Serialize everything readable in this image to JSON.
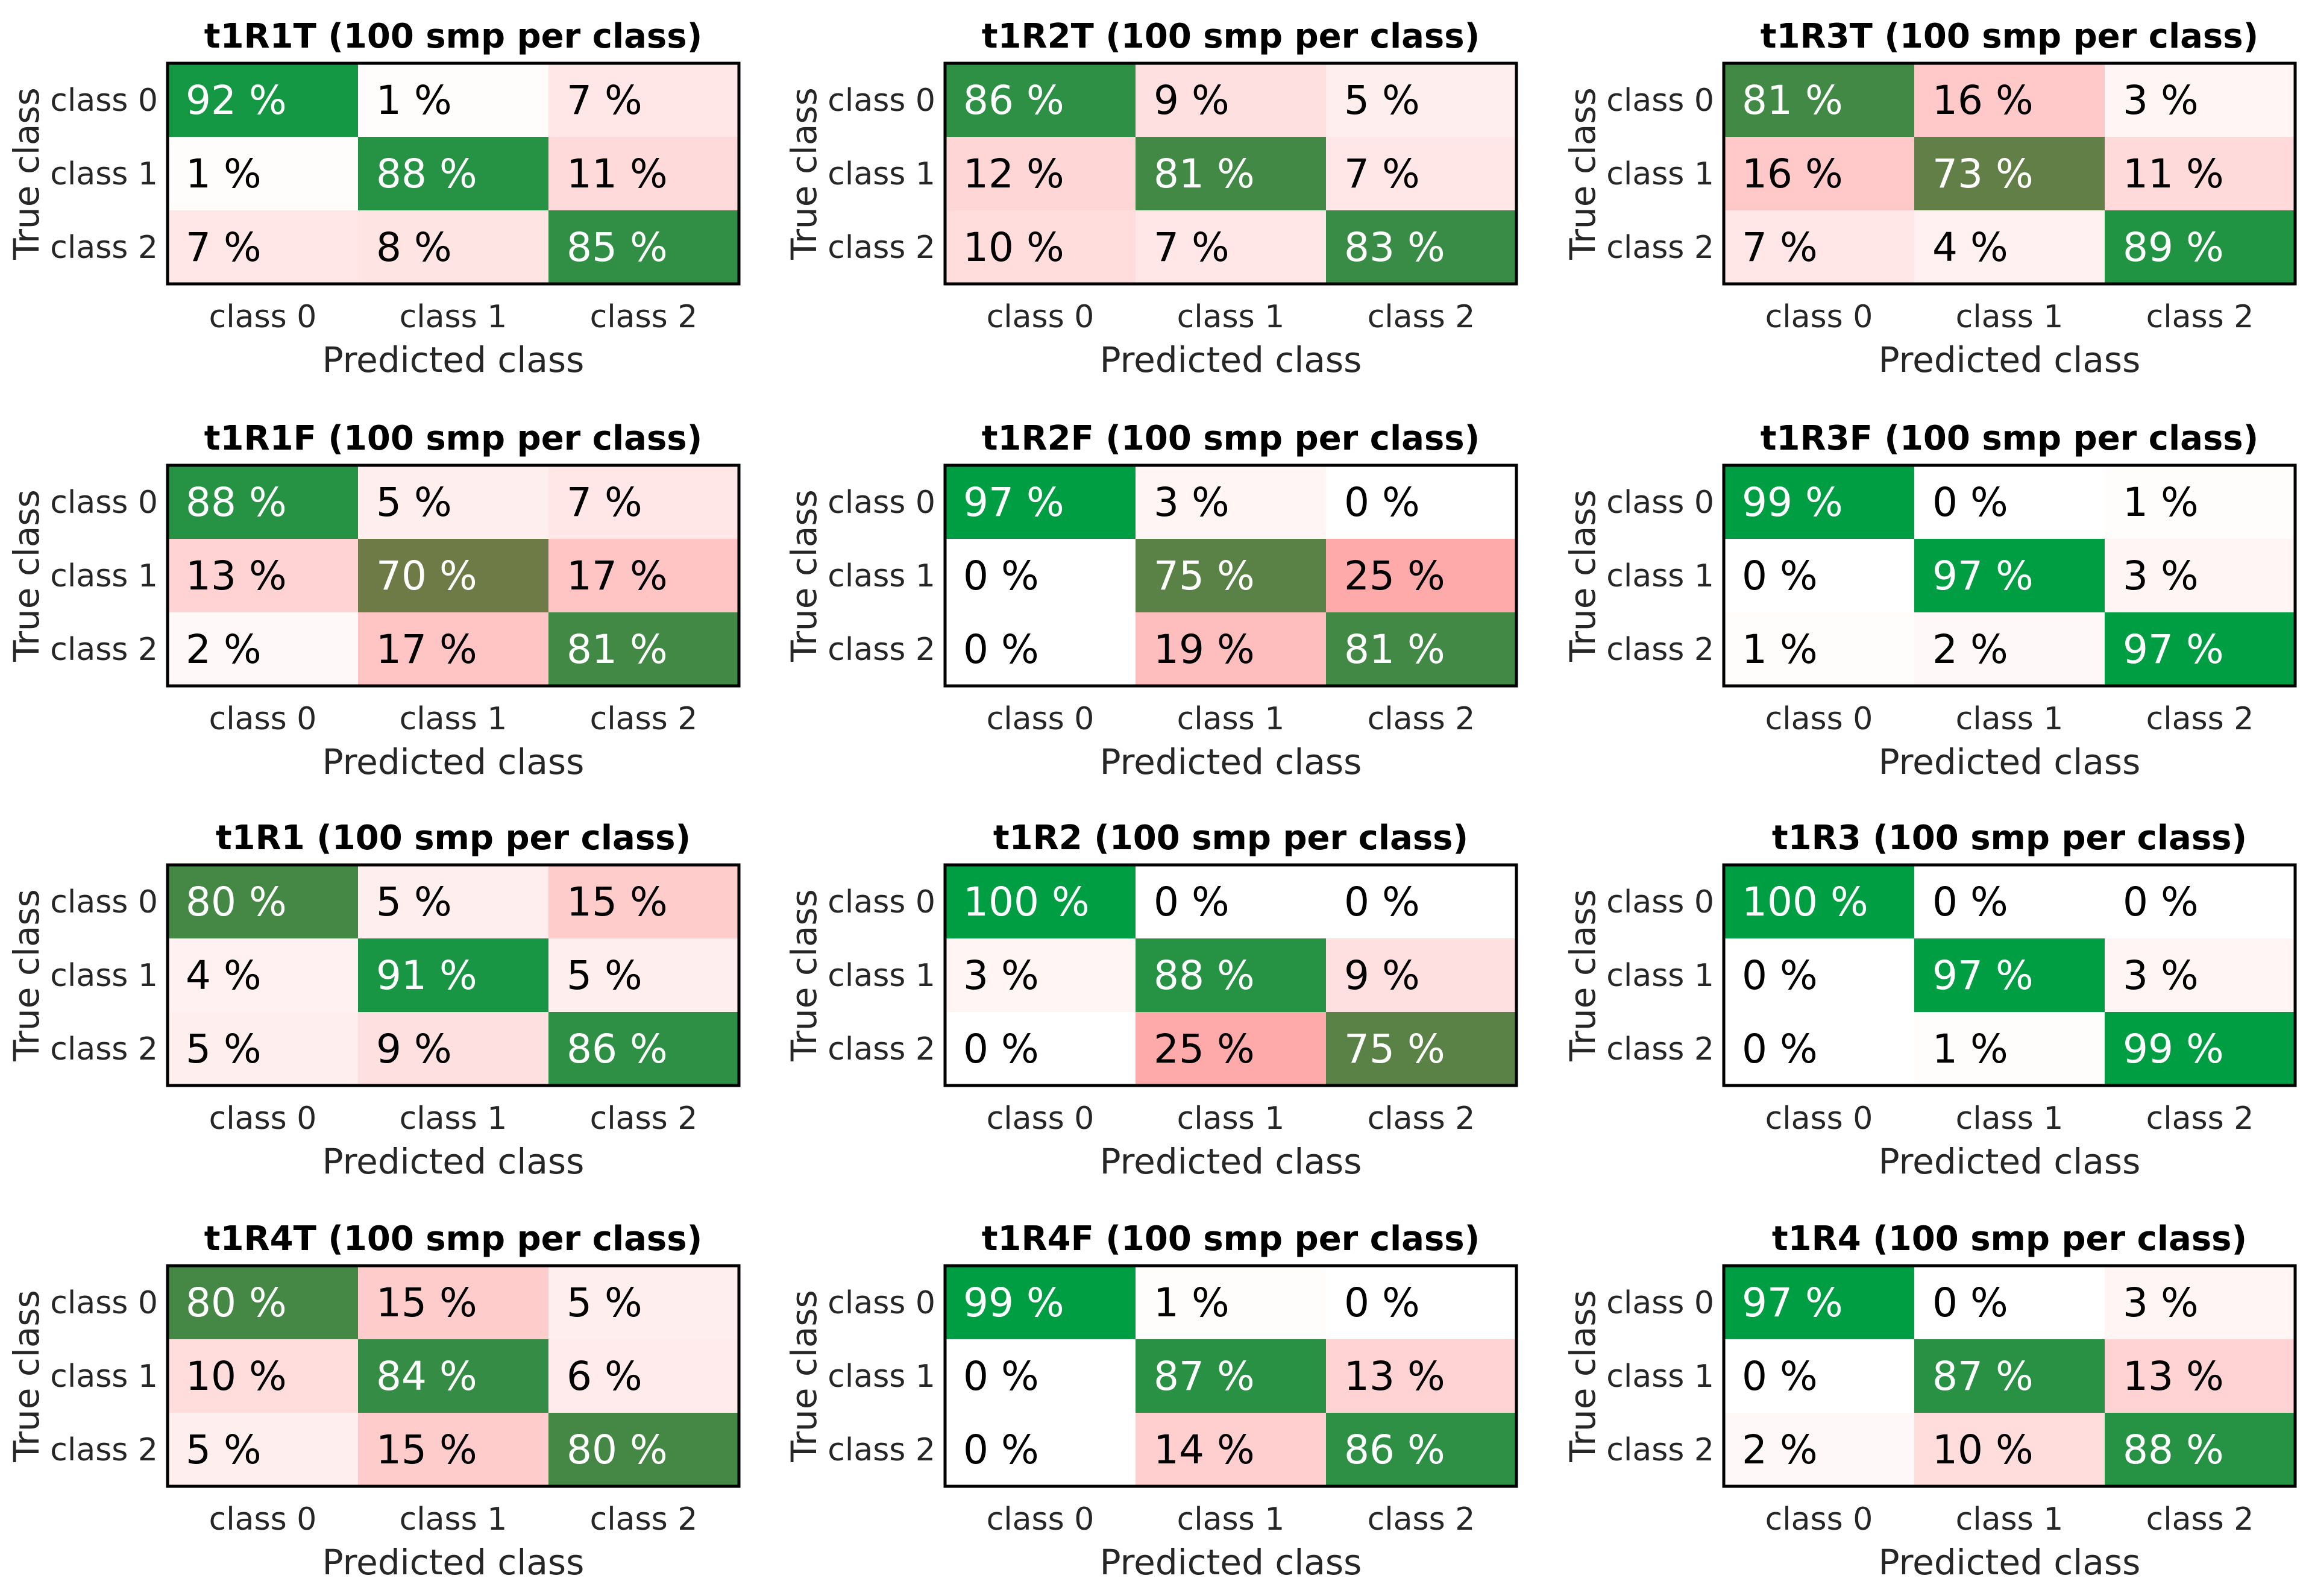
{
  "layout": {
    "columns": 3
  },
  "colors": {
    "diagonal_light": "#009e43",
    "diagonal_dark": "#6e7b47",
    "offdiag_strong": "#ffaaaa",
    "offdiag_faint": "#ffffff",
    "frame": "#000000",
    "text_dark": "#000000",
    "text_light": "#ffffff"
  },
  "chart_data": [
    {
      "type": "heatmap",
      "title": "t1R1T (100 smp per class)",
      "xlabel": "Predicted class",
      "ylabel": "True class",
      "x_categories": [
        "class 0",
        "class 1",
        "class 2"
      ],
      "y_categories": [
        "class 0",
        "class 1",
        "class 2"
      ],
      "value_unit": "%",
      "values": [
        [
          92,
          1,
          7
        ],
        [
          1,
          88,
          11
        ],
        [
          7,
          8,
          85
        ]
      ]
    },
    {
      "type": "heatmap",
      "title": "t1R2T (100 smp per class)",
      "xlabel": "Predicted class",
      "ylabel": "True class",
      "x_categories": [
        "class 0",
        "class 1",
        "class 2"
      ],
      "y_categories": [
        "class 0",
        "class 1",
        "class 2"
      ],
      "value_unit": "%",
      "values": [
        [
          86,
          9,
          5
        ],
        [
          12,
          81,
          7
        ],
        [
          10,
          7,
          83
        ]
      ]
    },
    {
      "type": "heatmap",
      "title": "t1R3T (100 smp per class)",
      "xlabel": "Predicted class",
      "ylabel": "True class",
      "x_categories": [
        "class 0",
        "class 1",
        "class 2"
      ],
      "y_categories": [
        "class 0",
        "class 1",
        "class 2"
      ],
      "value_unit": "%",
      "values": [
        [
          81,
          16,
          3
        ],
        [
          16,
          73,
          11
        ],
        [
          7,
          4,
          89
        ]
      ]
    },
    {
      "type": "heatmap",
      "title": "t1R1F (100 smp per class)",
      "xlabel": "Predicted class",
      "ylabel": "True class",
      "x_categories": [
        "class 0",
        "class 1",
        "class 2"
      ],
      "y_categories": [
        "class 0",
        "class 1",
        "class 2"
      ],
      "value_unit": "%",
      "values": [
        [
          88,
          5,
          7
        ],
        [
          13,
          70,
          17
        ],
        [
          2,
          17,
          81
        ]
      ]
    },
    {
      "type": "heatmap",
      "title": "t1R2F (100 smp per class)",
      "xlabel": "Predicted class",
      "ylabel": "True class",
      "x_categories": [
        "class 0",
        "class 1",
        "class 2"
      ],
      "y_categories": [
        "class 0",
        "class 1",
        "class 2"
      ],
      "value_unit": "%",
      "values": [
        [
          97,
          3,
          0
        ],
        [
          0,
          75,
          25
        ],
        [
          0,
          19,
          81
        ]
      ]
    },
    {
      "type": "heatmap",
      "title": "t1R3F (100 smp per class)",
      "xlabel": "Predicted class",
      "ylabel": "True class",
      "x_categories": [
        "class 0",
        "class 1",
        "class 2"
      ],
      "y_categories": [
        "class 0",
        "class 1",
        "class 2"
      ],
      "value_unit": "%",
      "values": [
        [
          99,
          0,
          1
        ],
        [
          0,
          97,
          3
        ],
        [
          1,
          2,
          97
        ]
      ]
    },
    {
      "type": "heatmap",
      "title": "t1R1 (100 smp per class)",
      "xlabel": "Predicted class",
      "ylabel": "True class",
      "x_categories": [
        "class 0",
        "class 1",
        "class 2"
      ],
      "y_categories": [
        "class 0",
        "class 1",
        "class 2"
      ],
      "value_unit": "%",
      "values": [
        [
          80,
          5,
          15
        ],
        [
          4,
          91,
          5
        ],
        [
          5,
          9,
          86
        ]
      ]
    },
    {
      "type": "heatmap",
      "title": "t1R2 (100 smp per class)",
      "xlabel": "Predicted class",
      "ylabel": "True class",
      "x_categories": [
        "class 0",
        "class 1",
        "class 2"
      ],
      "y_categories": [
        "class 0",
        "class 1",
        "class 2"
      ],
      "value_unit": "%",
      "values": [
        [
          100,
          0,
          0
        ],
        [
          3,
          88,
          9
        ],
        [
          0,
          25,
          75
        ]
      ]
    },
    {
      "type": "heatmap",
      "title": "t1R3 (100 smp per class)",
      "xlabel": "Predicted class",
      "ylabel": "True class",
      "x_categories": [
        "class 0",
        "class 1",
        "class 2"
      ],
      "y_categories": [
        "class 0",
        "class 1",
        "class 2"
      ],
      "value_unit": "%",
      "values": [
        [
          100,
          0,
          0
        ],
        [
          0,
          97,
          3
        ],
        [
          0,
          1,
          99
        ]
      ]
    },
    {
      "type": "heatmap",
      "title": "t1R4T (100 smp per class)",
      "xlabel": "Predicted class",
      "ylabel": "True class",
      "x_categories": [
        "class 0",
        "class 1",
        "class 2"
      ],
      "y_categories": [
        "class 0",
        "class 1",
        "class 2"
      ],
      "value_unit": "%",
      "values": [
        [
          80,
          15,
          5
        ],
        [
          10,
          84,
          6
        ],
        [
          5,
          15,
          80
        ]
      ]
    },
    {
      "type": "heatmap",
      "title": "t1R4F (100 smp per class)",
      "xlabel": "Predicted class",
      "ylabel": "True class",
      "x_categories": [
        "class 0",
        "class 1",
        "class 2"
      ],
      "y_categories": [
        "class 0",
        "class 1",
        "class 2"
      ],
      "value_unit": "%",
      "values": [
        [
          99,
          1,
          0
        ],
        [
          0,
          87,
          13
        ],
        [
          0,
          14,
          86
        ]
      ]
    },
    {
      "type": "heatmap",
      "title": "t1R4 (100 smp per class)",
      "xlabel": "Predicted class",
      "ylabel": "True class",
      "x_categories": [
        "class 0",
        "class 1",
        "class 2"
      ],
      "y_categories": [
        "class 0",
        "class 1",
        "class 2"
      ],
      "value_unit": "%",
      "values": [
        [
          97,
          0,
          3
        ],
        [
          0,
          87,
          13
        ],
        [
          2,
          10,
          88
        ]
      ]
    }
  ]
}
